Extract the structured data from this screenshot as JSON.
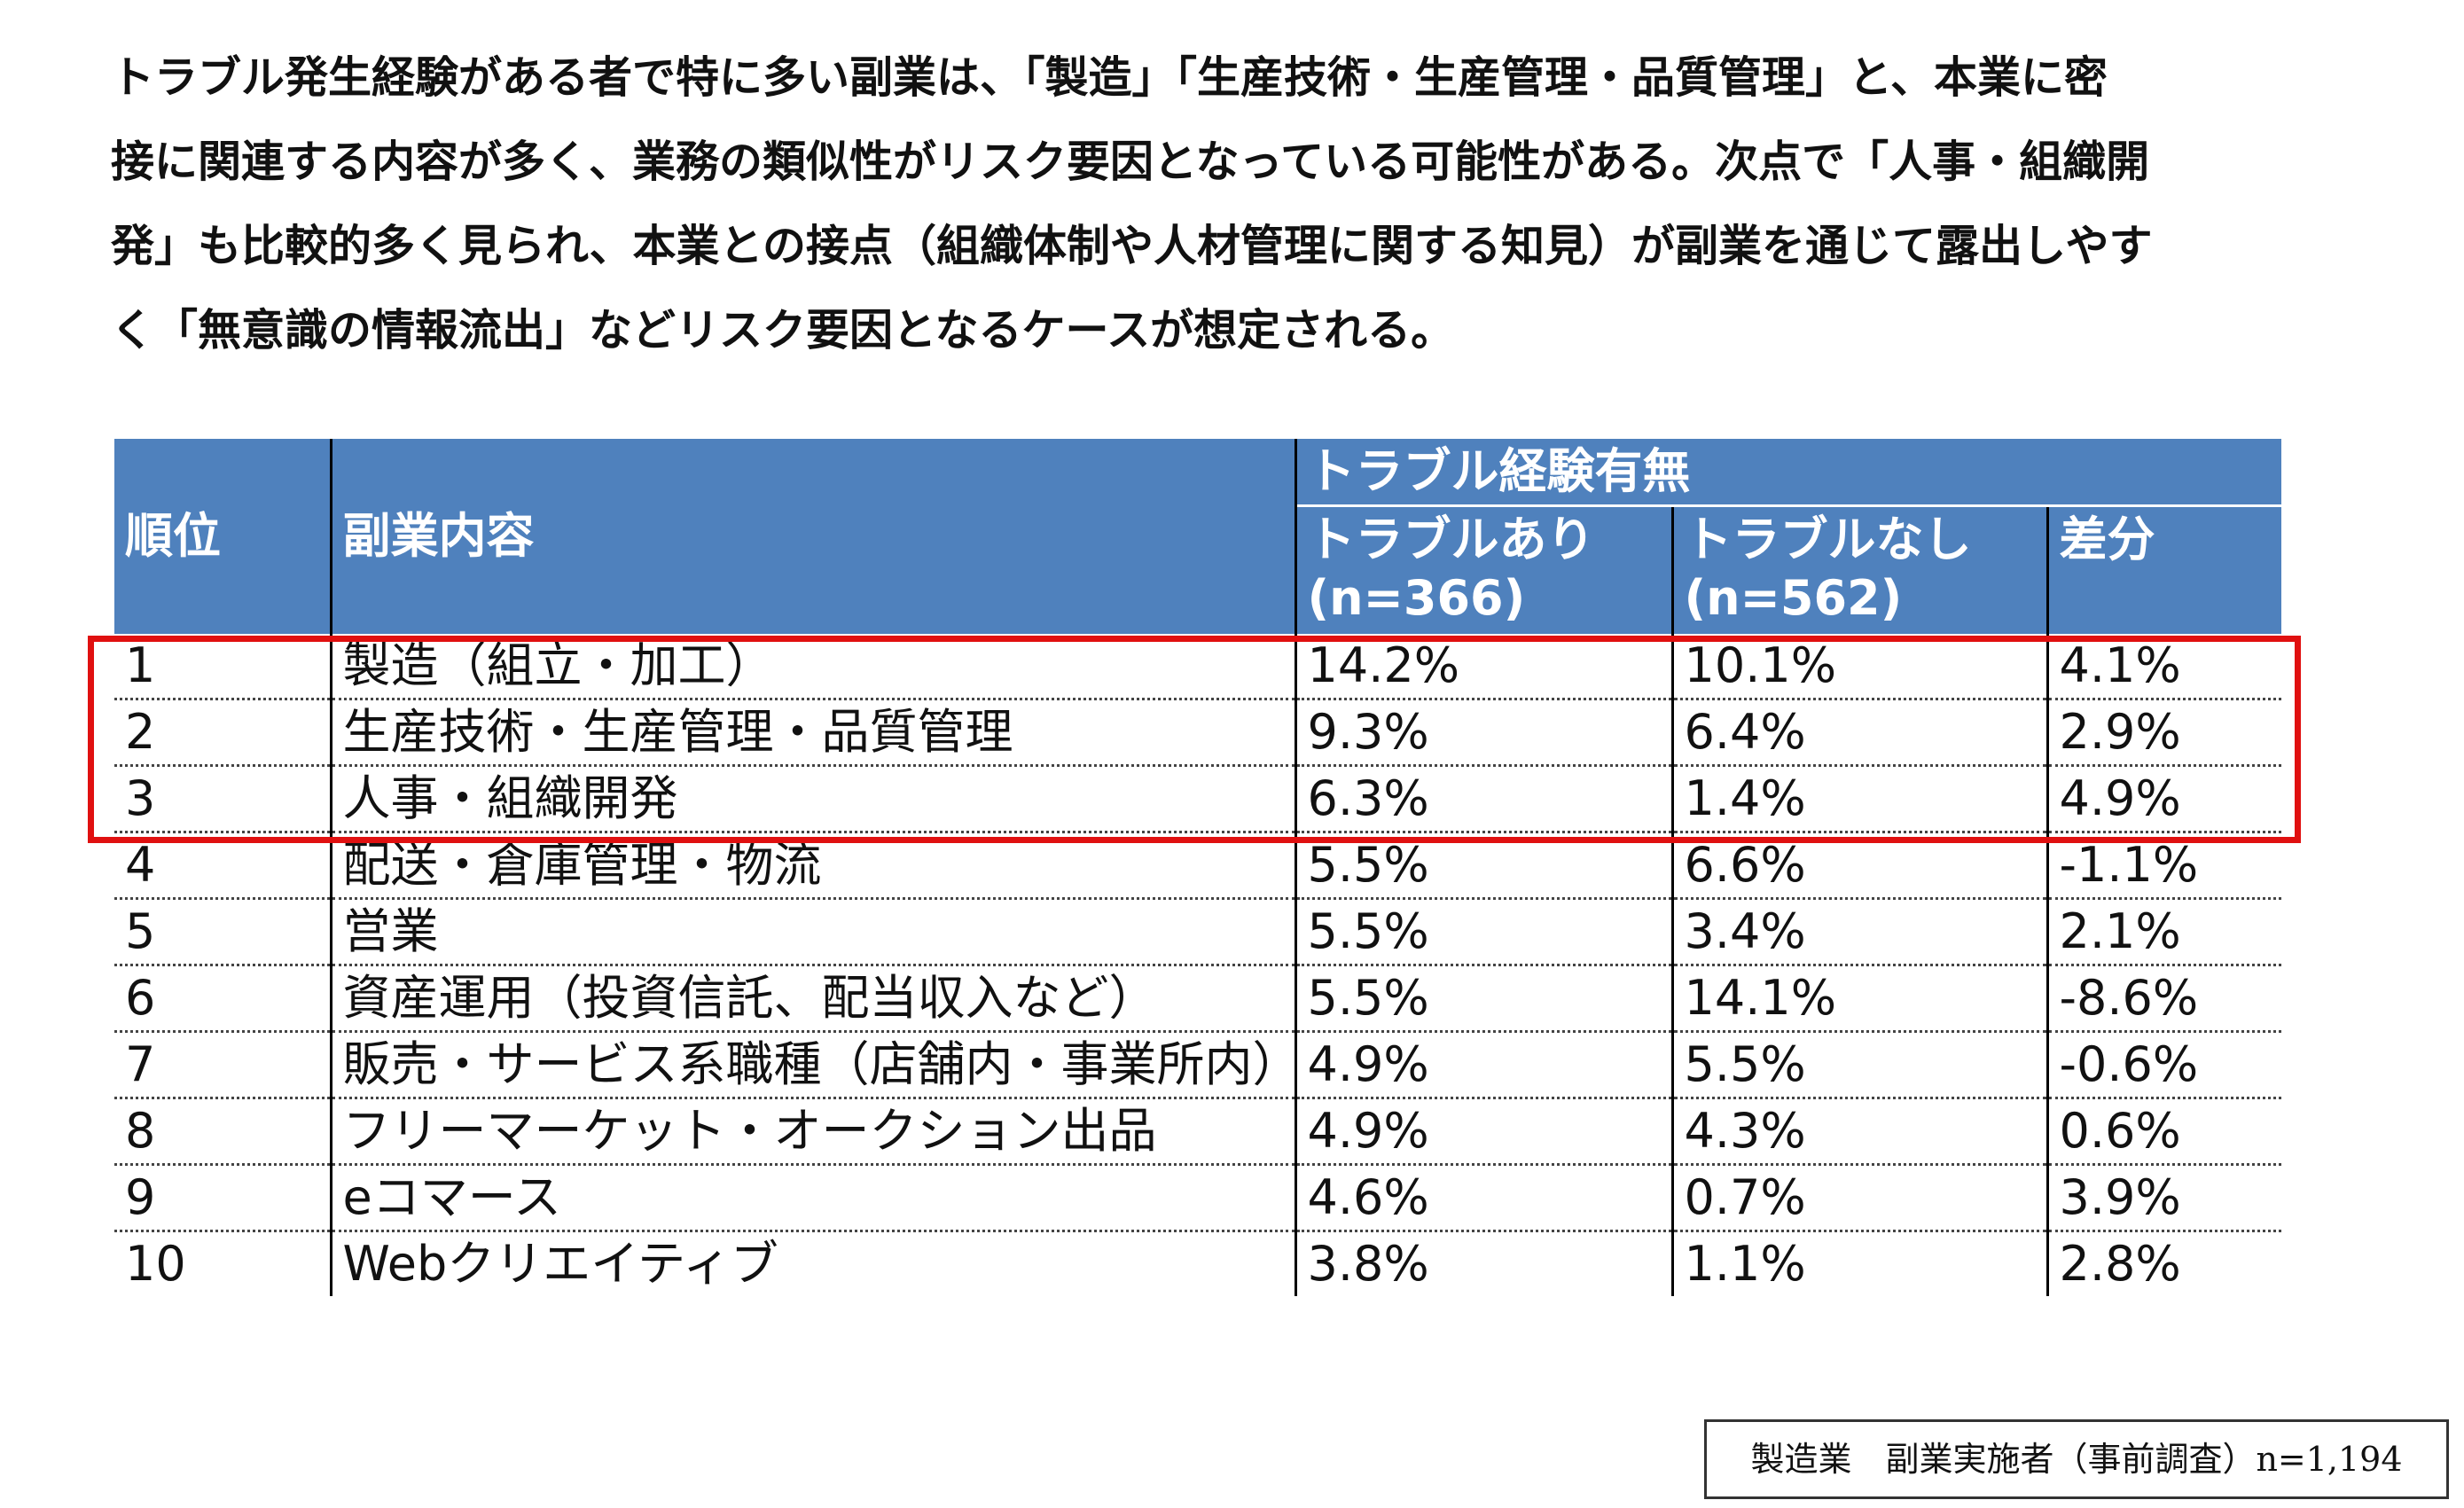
{
  "paragraph": [
    "トラブル発生経験がある者で特に多い副業は、「製造」「生産技術・生産管理・品質管理」と、本業に密",
    "接に関連する内容が多く、業務の類似性がリスク要因となっている可能性がある。次点で「人事・組織開",
    "発」も比較的多く見られ、本業との接点（組織体制や人材管理に関する知見）が副業を通じて露出しやす",
    "く「無意識の情報流出」などリスク要因となるケースが想定される。"
  ],
  "table": {
    "headers": {
      "rank": "順位",
      "content": "副業内容",
      "group": "トラブル経験有無",
      "with": "トラブルあり (n=366)",
      "without": "トラブルなし (n=562)",
      "diff": "差分"
    },
    "rows": [
      [
        "1",
        "製造（組立・加工）",
        "14.2%",
        "10.1%",
        "4.1%"
      ],
      [
        "2",
        "生産技術・生産管理・品質管理",
        "9.3%",
        "6.4%",
        "2.9%"
      ],
      [
        "3",
        "人事・組織開発",
        "6.3%",
        "1.4%",
        "4.9%"
      ],
      [
        "4",
        "配送・倉庫管理・物流",
        "5.5%",
        "6.6%",
        "-1.1%"
      ],
      [
        "5",
        "営業",
        "5.5%",
        "3.4%",
        "2.1%"
      ],
      [
        "6",
        "資産運用（投資信託、配当収入など）",
        "5.5%",
        "14.1%",
        "-8.6%"
      ],
      [
        "7",
        "販売・サービス系職種（店舗内・事業所内）",
        "4.9%",
        "5.5%",
        "-0.6%"
      ],
      [
        "8",
        "フリーマーケット・オークション出品",
        "4.9%",
        "4.3%",
        "0.6%"
      ],
      [
        "9",
        "eコマース",
        "4.6%",
        "0.7%",
        "3.9%"
      ],
      [
        "10",
        "Webクリエイティブ",
        "3.8%",
        "1.1%",
        "2.8%"
      ]
    ]
  },
  "note": "製造業　副業実施者（事前調査）n=1,194"
}
